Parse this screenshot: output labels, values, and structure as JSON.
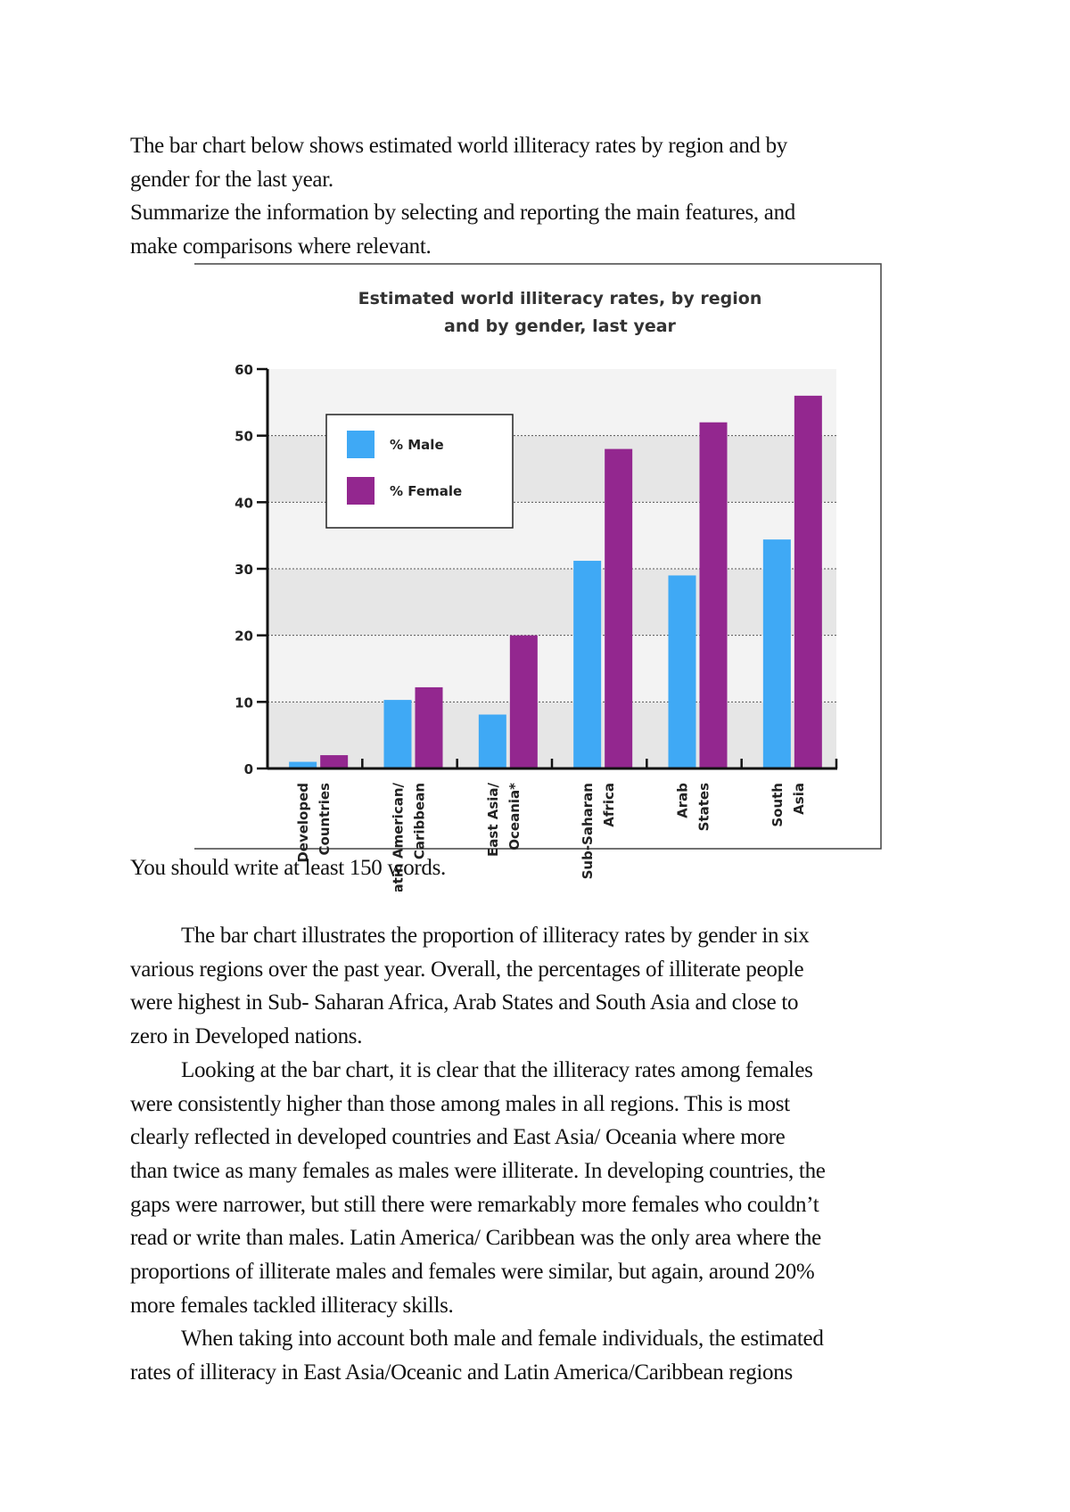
{
  "prompt": {
    "lines": [
      "The bar chart below shows estimated world illiteracy rates by region and by",
      "gender for the last year.",
      "Summarize the information by selecting and reporting the main features, and",
      "make comparisons where relevant."
    ],
    "word_requirement": "You should write at least 150 words."
  },
  "essay": {
    "lines": [
      "The bar chart illustrates the proportion of illiteracy rates by gender in six",
      "various regions over the past year. Overall,  the percentages of illiterate people",
      "were highest in Sub- Saharan Africa, Arab States and South Asia and close to",
      "zero in Developed nations.",
      "Looking at the bar chart, it is clear that the illiteracy rates among females",
      "were consistently higher than those among males in all regions. This is most",
      "clearly reflected in developed countries and East Asia/ Oceania where more",
      "than twice as many females as males were illiterate. In developing countries, the",
      "gaps were narrower, but still there were remarkably more females who couldn’t",
      "read or write than males. Latin America/ Caribbean was the only area where the",
      "proportions of illiterate males and females were similar, but again, around 20%",
      "more females tackled illiteracy skills.",
      "When taking into account both male and female individuals, the estimated",
      "rates of illiteracy in East Asia/Oceanic and Latin America/Caribbean regions"
    ],
    "indented_lines": [
      0,
      4,
      12
    ]
  },
  "chart_data": {
    "type": "bar",
    "title": [
      "Estimated world illiteracy rates, by region",
      "and by gender, last year"
    ],
    "categories": [
      [
        "Developed",
        "Countries"
      ],
      [
        "Latin American/",
        "Caribbean"
      ],
      [
        "East Asia/",
        "Oceania*"
      ],
      [
        "Sub-Saharan",
        "Africa"
      ],
      [
        "Arab",
        "States"
      ],
      [
        "South",
        "Asia"
      ]
    ],
    "series": [
      {
        "name": "% Male",
        "color": "#3fa9f5",
        "values": [
          1,
          10.3,
          8.1,
          31.2,
          29,
          34.4
        ]
      },
      {
        "name": "% Female",
        "color": "#93278f",
        "values": [
          2,
          12.2,
          20,
          48,
          52,
          56
        ]
      }
    ],
    "yticks": [
      0,
      10,
      20,
      30,
      40,
      50,
      60
    ],
    "ylim": [
      0,
      60
    ],
    "xlabel": "",
    "ylabel": "",
    "grid": true,
    "legend": "top-left"
  }
}
